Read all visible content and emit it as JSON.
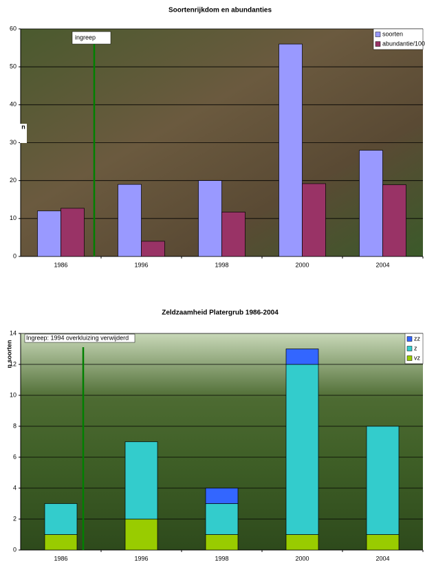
{
  "chart_data": [
    {
      "type": "bar",
      "title": "Soortenrijkdom en abundanties",
      "ylabel": "n",
      "annotation": "ingreep",
      "categories": [
        "1986",
        "1996",
        "1998",
        "2000",
        "2004"
      ],
      "series": [
        {
          "name": "soorten",
          "color": "#9999ff",
          "values": [
            12,
            19,
            20,
            56,
            28
          ]
        },
        {
          "name": "abundantie/100",
          "color": "#993366",
          "values": [
            12.7,
            4,
            11.7,
            19.2,
            18.9
          ]
        }
      ],
      "ylim": [
        0,
        60
      ],
      "yticks": [
        0,
        10,
        20,
        30,
        40,
        50,
        60
      ],
      "grid": true,
      "legend": "top-right"
    },
    {
      "type": "stacked_bar",
      "title": "Zeldzaamheid Platergrub 1986-2004",
      "ylabel": "n soorten",
      "annotation": "Ingreep: 1994 overkluizing verwijderd",
      "categories": [
        "1986",
        "1996",
        "1998",
        "2000",
        "2004"
      ],
      "series": [
        {
          "name": "vz",
          "color": "#99cc00",
          "values": [
            1,
            2,
            1,
            1,
            1
          ]
        },
        {
          "name": "z",
          "color": "#33cccc",
          "values": [
            2,
            5,
            2,
            11,
            7
          ]
        },
        {
          "name": "zz",
          "color": "#3366ff",
          "values": [
            0,
            0,
            1,
            1,
            0
          ]
        }
      ],
      "ylim": [
        0,
        14
      ],
      "yticks": [
        0,
        2,
        4,
        6,
        8,
        10,
        12,
        14
      ],
      "grid": true,
      "legend": "top-right"
    }
  ]
}
